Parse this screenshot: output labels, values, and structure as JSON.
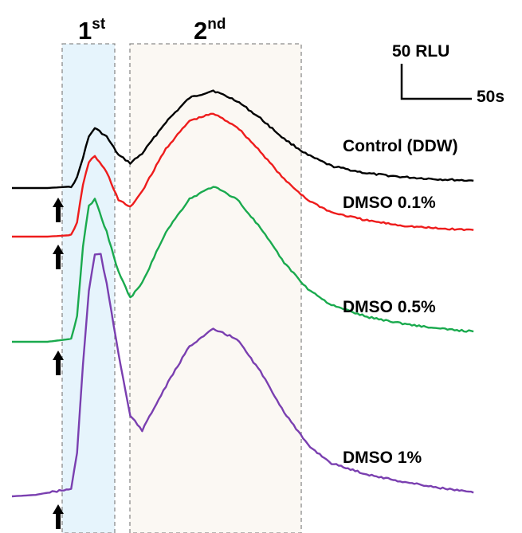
{
  "chart_data": {
    "type": "line",
    "title": "",
    "xlabel": "",
    "ylabel": "",
    "regions": [
      {
        "label": "1",
        "sup": "st",
        "fill": "#e6f4fc"
      },
      {
        "label": "2",
        "sup": "nd",
        "fill": "#fbf8f3"
      }
    ],
    "scale_bar": {
      "y_label": "50 RLU",
      "x_label": "50s"
    },
    "series": [
      {
        "name": "Control (DDW)",
        "color": "#000000",
        "x": [
          0,
          30,
          50,
          55,
          60,
          65,
          70,
          80,
          90,
          100,
          110,
          130,
          150,
          170,
          190,
          210,
          230,
          250,
          270,
          300,
          330,
          360,
          390
        ],
        "y": [
          0,
          0,
          2,
          14,
          42,
          70,
          82,
          70,
          45,
          34,
          47,
          90,
          123,
          133,
          119,
          95,
          67,
          45,
          30,
          20,
          15,
          12,
          10
        ]
      },
      {
        "name": "DMSO 0.1%",
        "color": "#ee1c1c",
        "x": [
          0,
          30,
          50,
          55,
          60,
          65,
          70,
          80,
          90,
          100,
          110,
          130,
          150,
          170,
          190,
          210,
          230,
          250,
          270,
          300,
          330,
          360,
          390
        ],
        "y": [
          0,
          0,
          2,
          20,
          70,
          102,
          110,
          88,
          50,
          40,
          62,
          120,
          158,
          168,
          150,
          116,
          78,
          50,
          33,
          22,
          15,
          11,
          9
        ]
      },
      {
        "name": "DMSO 0.5%",
        "color": "#1aaa4e",
        "x": [
          0,
          30,
          50,
          55,
          60,
          65,
          70,
          80,
          90,
          100,
          110,
          130,
          150,
          170,
          190,
          210,
          230,
          250,
          270,
          300,
          330,
          360,
          390
        ],
        "y": [
          0,
          0,
          4,
          35,
          130,
          185,
          195,
          150,
          95,
          60,
          80,
          150,
          195,
          212,
          195,
          155,
          108,
          72,
          50,
          34,
          25,
          18,
          14
        ]
      },
      {
        "name": "DMSO 1%",
        "color": "#7a3fb0",
        "x": [
          0,
          20,
          30,
          50,
          55,
          60,
          65,
          70,
          75,
          80,
          90,
          100,
          110,
          130,
          150,
          170,
          190,
          210,
          230,
          250,
          270,
          300,
          330,
          360,
          390
        ],
        "y": [
          0,
          2,
          5,
          10,
          60,
          180,
          280,
          330,
          330,
          290,
          195,
          110,
          90,
          150,
          205,
          228,
          215,
          170,
          115,
          70,
          45,
          30,
          20,
          12,
          5
        ]
      }
    ]
  }
}
